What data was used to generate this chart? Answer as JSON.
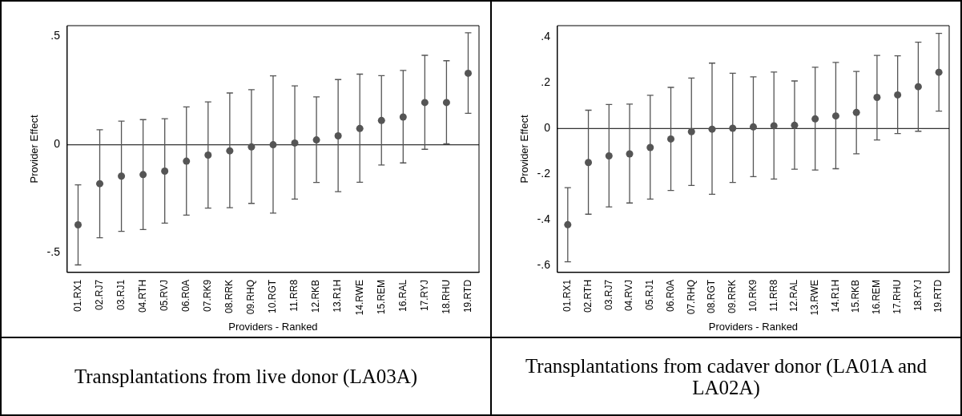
{
  "chart_data": [
    {
      "type": "scatter",
      "xlabel": "Providers - Ranked",
      "ylabel": "Provider Effect",
      "color": "#555555",
      "marker": "circle",
      "grid": false,
      "legend": false,
      "categories": [
        "01.RX1",
        "02.RJ7",
        "03.RJ1",
        "04.RTH",
        "05.RVJ",
        "06.R0A",
        "07.RK9",
        "08.RRK",
        "09.RHQ",
        "10.RGT",
        "11.RR8",
        "12.RKB",
        "13.R1H",
        "14.RWE",
        "15.REM",
        "16.RAL",
        "17.RYJ",
        "18.RHU",
        "19.RTD"
      ],
      "values": [
        -0.37,
        -0.18,
        -0.145,
        -0.138,
        -0.122,
        -0.076,
        -0.048,
        -0.028,
        -0.01,
        0,
        0.008,
        0.022,
        0.041,
        0.075,
        0.112,
        0.128,
        0.195,
        0.195,
        0.33
      ],
      "errors": [
        [
          -0.555,
          -0.185
        ],
        [
          -0.43,
          0.069
        ],
        [
          -0.4,
          0.109
        ],
        [
          -0.392,
          0.116
        ],
        [
          -0.362,
          0.12
        ],
        [
          -0.325,
          0.175
        ],
        [
          -0.293,
          0.198
        ],
        [
          -0.291,
          0.239
        ],
        [
          -0.271,
          0.254
        ],
        [
          -0.316,
          0.318
        ],
        [
          -0.251,
          0.272
        ],
        [
          -0.174,
          0.221
        ],
        [
          -0.217,
          0.301
        ],
        [
          -0.173,
          0.326
        ],
        [
          -0.094,
          0.319
        ],
        [
          -0.084,
          0.343
        ],
        [
          -0.021,
          0.413
        ],
        [
          0.004,
          0.388
        ],
        [
          0.145,
          0.517
        ]
      ],
      "ylim": [
        -0.59,
        0.55
      ],
      "yticks": [
        {
          "value": -0.5,
          "label": "-.5"
        },
        0,
        {
          "value": 0.5,
          "label": ".5"
        }
      ],
      "ref_lines": [
        {
          "axis": "y",
          "value": 0,
          "color": "#333333"
        }
      ],
      "annotations": [
        "Transplantations from live donor  (LA03A)"
      ]
    },
    {
      "type": "scatter",
      "xlabel": "Providers - Ranked",
      "ylabel": "Provider Effect",
      "color": "#555555",
      "marker": "circle",
      "grid": false,
      "legend": false,
      "categories": [
        "01.RX1",
        "02.RTH",
        "03.RJ7",
        "04.RVJ",
        "05.RJ1",
        "06.R0A",
        "07.RHQ",
        "08.RGT",
        "09.RRK",
        "10.RK9",
        "11.RR8",
        "12.RAL",
        "13.RWE",
        "14.R1H",
        "15.RKB",
        "16.REM",
        "17.RHU",
        "18.RYJ",
        "19.RTD"
      ],
      "values": [
        -0.421,
        -0.149,
        -0.12,
        -0.111,
        -0.083,
        -0.046,
        -0.014,
        -0.003,
        0.001,
        0.007,
        0.012,
        0.014,
        0.042,
        0.055,
        0.07,
        0.136,
        0.147,
        0.183,
        0.246
      ],
      "errors": [
        [
          -0.583,
          -0.259
        ],
        [
          -0.375,
          0.08
        ],
        [
          -0.343,
          0.105
        ],
        [
          -0.326,
          0.107
        ],
        [
          -0.309,
          0.145
        ],
        [
          -0.271,
          0.18
        ],
        [
          -0.249,
          0.221
        ],
        [
          -0.288,
          0.286
        ],
        [
          -0.236,
          0.242
        ],
        [
          -0.211,
          0.226
        ],
        [
          -0.221,
          0.247
        ],
        [
          -0.178,
          0.208
        ],
        [
          -0.182,
          0.268
        ],
        [
          -0.176,
          0.289
        ],
        [
          -0.111,
          0.25
        ],
        [
          -0.05,
          0.32
        ],
        [
          -0.022,
          0.318
        ],
        [
          -0.012,
          0.378
        ],
        [
          0.076,
          0.416
        ]
      ],
      "ylim": [
        -0.63,
        0.45
      ],
      "yticks": [
        {
          "value": -0.6,
          "label": "-.6"
        },
        {
          "value": -0.4,
          "label": "-.4"
        },
        {
          "value": -0.2,
          "label": "-.2"
        },
        0,
        {
          "value": 0.2,
          "label": ".2"
        },
        {
          "value": 0.4,
          "label": ".4"
        }
      ],
      "ref_lines": [
        {
          "axis": "y",
          "value": 0,
          "color": "#333333"
        }
      ],
      "annotations": [
        "Transplantations from cadaver donor (LA01A and LA02A)"
      ]
    }
  ]
}
